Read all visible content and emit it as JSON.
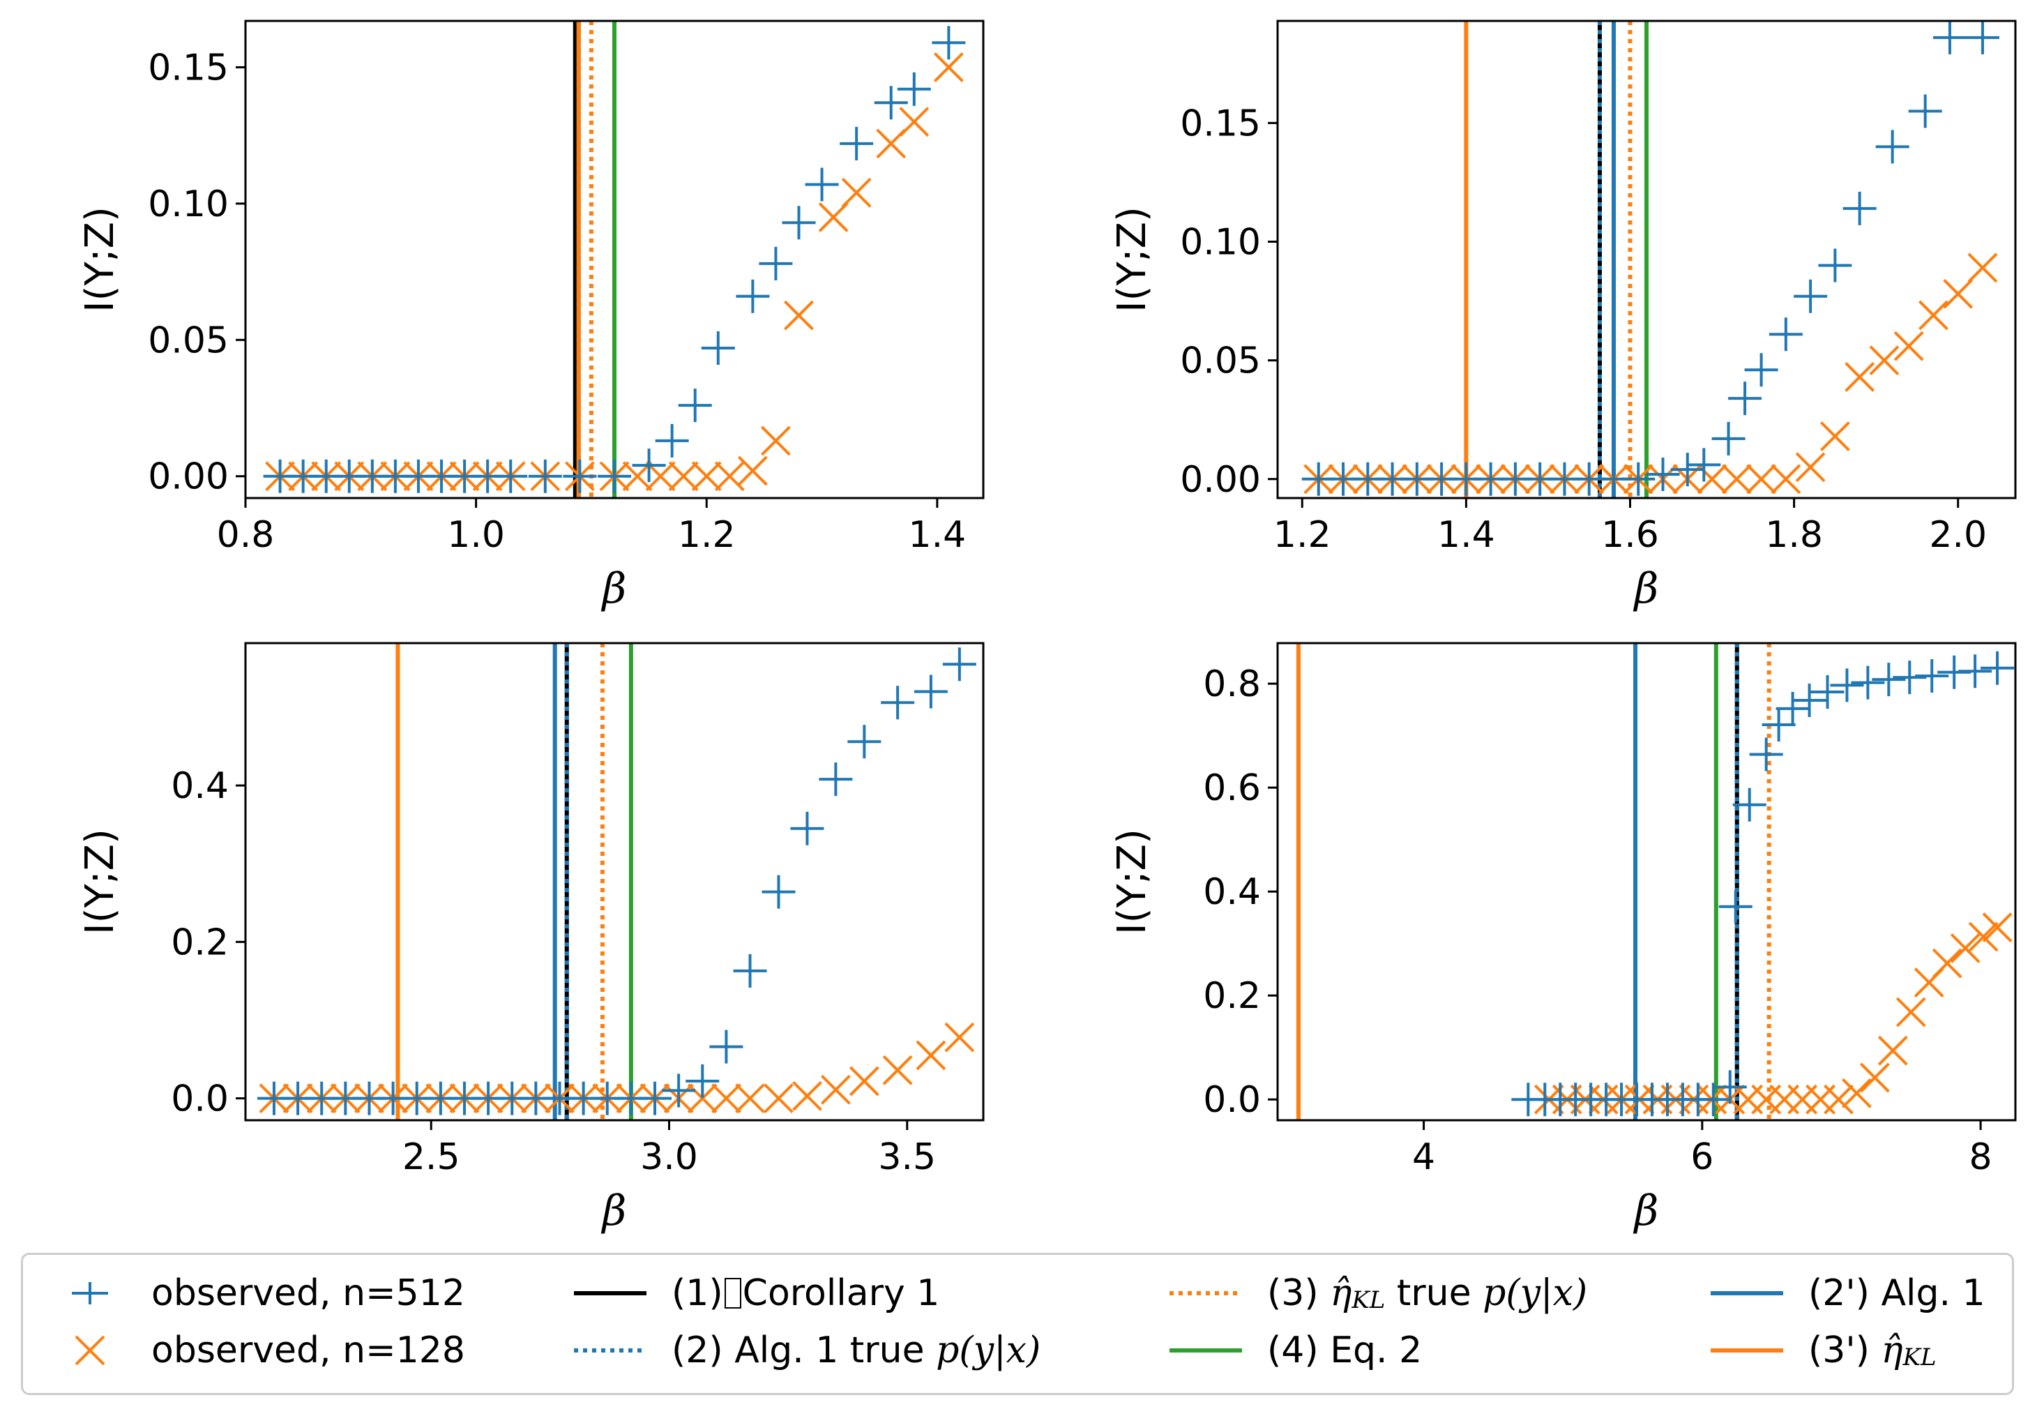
{
  "chart_data": [
    {
      "type": "scatter",
      "id": "top-left",
      "xlabel": "β",
      "ylabel": "I(Y;Z)",
      "xlim": [
        0.8,
        1.44
      ],
      "ylim": [
        -0.008,
        0.167
      ],
      "xticks": [
        0.8,
        1.0,
        1.2,
        1.4
      ],
      "xtick_labels": [
        "0.8",
        "1.0",
        "1.2",
        "1.4"
      ],
      "yticks": [
        0.0,
        0.05,
        0.1,
        0.15
      ],
      "ytick_labels": [
        "0.00",
        "0.05",
        "0.10",
        "0.15"
      ],
      "vlines": [
        {
          "key": "corollary1",
          "x": 1.086
        },
        {
          "key": "eta_kl",
          "x": 1.089
        },
        {
          "key": "alg1_true",
          "x": 1.089
        },
        {
          "key": "alg1",
          "x": 1.089
        },
        {
          "key": "eta_kl_true",
          "x": 1.1
        },
        {
          "key": "eq2",
          "x": 1.12
        }
      ],
      "series": [
        {
          "name": "observed, n=512",
          "x": [
            0.83,
            0.85,
            0.87,
            0.89,
            0.91,
            0.93,
            0.95,
            0.97,
            0.99,
            1.01,
            1.03,
            1.06,
            1.09,
            1.12,
            1.15,
            1.17,
            1.19,
            1.21,
            1.24,
            1.26,
            1.28,
            1.3,
            1.33,
            1.36,
            1.38,
            1.41
          ],
          "y": [
            0,
            0,
            0,
            0,
            0,
            0,
            0,
            0,
            0,
            0,
            0,
            0,
            0,
            0,
            0.004,
            0.013,
            0.026,
            0.047,
            0.066,
            0.078,
            0.093,
            0.107,
            0.122,
            0.137,
            0.142,
            0.159
          ]
        },
        {
          "name": "observed, n=128",
          "x": [
            0.83,
            0.85,
            0.87,
            0.89,
            0.91,
            0.93,
            0.95,
            0.97,
            0.99,
            1.01,
            1.03,
            1.06,
            1.09,
            1.12,
            1.14,
            1.16,
            1.18,
            1.2,
            1.22,
            1.24,
            1.26,
            1.28,
            1.31,
            1.33,
            1.36,
            1.38,
            1.41
          ],
          "y": [
            0,
            0,
            0,
            0,
            0,
            0,
            0,
            0,
            0,
            0,
            0,
            0,
            0,
            0,
            0,
            0,
            0,
            0,
            0,
            0.002,
            0.013,
            0.059,
            0.095,
            0.104,
            0.122,
            0.13,
            0.15
          ]
        }
      ]
    },
    {
      "type": "scatter",
      "id": "top-right",
      "xlabel": "β",
      "ylabel": "I(Y;Z)",
      "xlim": [
        1.17,
        2.07
      ],
      "ylim": [
        -0.008,
        0.193
      ],
      "xticks": [
        1.2,
        1.4,
        1.6,
        1.8,
        2.0
      ],
      "xtick_labels": [
        "1.2",
        "1.4",
        "1.6",
        "1.8",
        "2.0"
      ],
      "yticks": [
        0.0,
        0.05,
        0.1,
        0.15
      ],
      "ytick_labels": [
        "0.00",
        "0.05",
        "0.10",
        "0.15"
      ],
      "vlines": [
        {
          "key": "eta_kl",
          "x": 1.4
        },
        {
          "key": "corollary1",
          "x": 1.563
        },
        {
          "key": "alg1_true",
          "x": 1.563
        },
        {
          "key": "alg1",
          "x": 1.58
        },
        {
          "key": "eta_kl_true",
          "x": 1.6
        },
        {
          "key": "eq2",
          "x": 1.62
        }
      ],
      "series": [
        {
          "name": "observed, n=512",
          "x": [
            1.22,
            1.25,
            1.28,
            1.31,
            1.34,
            1.37,
            1.4,
            1.43,
            1.46,
            1.49,
            1.52,
            1.55,
            1.58,
            1.61,
            1.64,
            1.67,
            1.69,
            1.72,
            1.74,
            1.76,
            1.79,
            1.82,
            1.85,
            1.88,
            1.92,
            1.96,
            1.99,
            2.03
          ],
          "y": [
            0,
            0,
            0,
            0,
            0,
            0,
            0,
            0,
            0,
            0,
            0,
            0,
            0,
            0,
            0.002,
            0.004,
            0.006,
            0.017,
            0.034,
            0.046,
            0.061,
            0.077,
            0.09,
            0.114,
            0.14,
            0.155,
            0.186,
            0.186
          ]
        },
        {
          "name": "observed, n=128",
          "x": [
            1.22,
            1.25,
            1.28,
            1.31,
            1.34,
            1.37,
            1.4,
            1.43,
            1.46,
            1.49,
            1.52,
            1.55,
            1.58,
            1.61,
            1.64,
            1.67,
            1.7,
            1.73,
            1.76,
            1.79,
            1.82,
            1.85,
            1.88,
            1.91,
            1.94,
            1.97,
            2.0,
            2.03
          ],
          "y": [
            0,
            0,
            0,
            0,
            0,
            0,
            0,
            0,
            0,
            0,
            0,
            0,
            0,
            0,
            0,
            0,
            0,
            0,
            0,
            0,
            0.005,
            0.018,
            0.043,
            0.05,
            0.056,
            0.069,
            0.078,
            0.089
          ]
        }
      ]
    },
    {
      "type": "scatter",
      "id": "bottom-left",
      "xlabel": "β",
      "ylabel": "I(Y;Z)",
      "xlim": [
        2.11,
        3.66
      ],
      "ylim": [
        -0.028,
        0.582
      ],
      "xticks": [
        2.5,
        3.0,
        3.5
      ],
      "xtick_labels": [
        "2.5",
        "3.0",
        "3.5"
      ],
      "yticks": [
        0.0,
        0.2,
        0.4
      ],
      "ytick_labels": [
        "0.0",
        "0.2",
        "0.4"
      ],
      "vlines": [
        {
          "key": "eta_kl",
          "x": 2.43
        },
        {
          "key": "alg1",
          "x": 2.76
        },
        {
          "key": "corollary1",
          "x": 2.785
        },
        {
          "key": "alg1_true",
          "x": 2.785
        },
        {
          "key": "eta_kl_true",
          "x": 2.86
        },
        {
          "key": "eq2",
          "x": 2.92
        }
      ],
      "series": [
        {
          "name": "observed, n=512",
          "x": [
            2.17,
            2.22,
            2.27,
            2.32,
            2.37,
            2.42,
            2.47,
            2.52,
            2.57,
            2.62,
            2.67,
            2.72,
            2.77,
            2.82,
            2.87,
            2.92,
            2.97,
            3.02,
            3.07,
            3.12,
            3.17,
            3.23,
            3.29,
            3.35,
            3.41,
            3.48,
            3.55,
            3.61
          ],
          "y": [
            0,
            0,
            0,
            0,
            0,
            0,
            0,
            0,
            0,
            0,
            0,
            0,
            0,
            0,
            0,
            0,
            0,
            0.01,
            0.022,
            0.066,
            0.163,
            0.264,
            0.345,
            0.408,
            0.456,
            0.506,
            0.52,
            0.555
          ]
        },
        {
          "name": "observed, n=128",
          "x": [
            2.17,
            2.22,
            2.27,
            2.32,
            2.37,
            2.42,
            2.47,
            2.52,
            2.57,
            2.62,
            2.67,
            2.72,
            2.77,
            2.82,
            2.87,
            2.92,
            2.97,
            3.02,
            3.07,
            3.12,
            3.17,
            3.23,
            3.29,
            3.35,
            3.41,
            3.48,
            3.55,
            3.61
          ],
          "y": [
            0,
            0,
            0,
            0,
            0,
            0,
            0,
            0,
            0,
            0,
            0,
            0,
            0,
            0,
            0,
            0,
            0,
            0,
            0,
            0,
            0,
            0,
            0.003,
            0.011,
            0.022,
            0.036,
            0.055,
            0.078
          ]
        }
      ]
    },
    {
      "type": "scatter",
      "id": "bottom-right",
      "xlabel": "β",
      "ylabel": "I(Y;Z)",
      "xlim": [
        2.95,
        8.25
      ],
      "ylim": [
        -0.04,
        0.878
      ],
      "xticks": [
        4,
        6,
        8
      ],
      "xtick_labels": [
        "4",
        "6",
        "8"
      ],
      "yticks": [
        0.0,
        0.2,
        0.4,
        0.6,
        0.8
      ],
      "ytick_labels": [
        "0.0",
        "0.2",
        "0.4",
        "0.6",
        "0.8"
      ],
      "vlines": [
        {
          "key": "eta_kl",
          "x": 3.1
        },
        {
          "key": "alg1",
          "x": 5.52
        },
        {
          "key": "eq2",
          "x": 6.1
        },
        {
          "key": "corollary1",
          "x": 6.25
        },
        {
          "key": "alg1_true",
          "x": 6.25
        },
        {
          "key": "eta_kl_true",
          "x": 6.48
        }
      ],
      "series": [
        {
          "name": "observed, n=512",
          "x": [
            4.75,
            4.87,
            4.98,
            5.09,
            5.2,
            5.31,
            5.42,
            5.53,
            5.64,
            5.75,
            5.86,
            5.97,
            6.08,
            6.2,
            6.24,
            6.34,
            6.46,
            6.55,
            6.65,
            6.77,
            6.9,
            7.04,
            7.19,
            7.34,
            7.49,
            7.65,
            7.81,
            7.96,
            8.12
          ],
          "y": [
            0,
            0,
            0,
            0,
            0,
            0,
            0,
            0,
            0,
            0,
            0,
            0,
            0,
            0.024,
            0.371,
            0.567,
            0.664,
            0.721,
            0.752,
            0.768,
            0.784,
            0.797,
            0.802,
            0.808,
            0.812,
            0.815,
            0.822,
            0.824,
            0.83
          ]
        },
        {
          "name": "observed, n=128",
          "x": [
            4.9,
            5.03,
            5.16,
            5.29,
            5.42,
            5.55,
            5.68,
            5.81,
            5.94,
            6.07,
            6.2,
            6.33,
            6.46,
            6.59,
            6.72,
            6.85,
            6.98,
            7.11,
            7.24,
            7.37,
            7.5,
            7.63,
            7.76,
            7.89,
            8.02,
            8.12
          ],
          "y": [
            0,
            0,
            0,
            0,
            0,
            0,
            0,
            0,
            0,
            0,
            0,
            0,
            0,
            0,
            0,
            0,
            0,
            0.012,
            0.042,
            0.094,
            0.168,
            0.225,
            0.262,
            0.291,
            0.313,
            0.331
          ]
        }
      ]
    }
  ],
  "colors": {
    "n512": "#1f77b4",
    "n128": "#ff7f0e",
    "corollary1": "#000000",
    "alg1_true": "#1f77b4",
    "eta_kl_true": "#ff7f0e",
    "eq2": "#2ca02c",
    "alg1": "#1f77b4",
    "eta_kl": "#ff7f0e"
  },
  "legend": {
    "n512": "observed, n=512",
    "n128": "observed, n=128",
    "corollary1_prefix": "(1)",
    "corollary1_box": "􏰀",
    "corollary1_suffix": "Corollary 1",
    "alg1_true_prefix": "(2) Alg. 1 true ",
    "alg1_true_math": "p(y|x)",
    "eta_kl_true_prefix": "(3) ",
    "eta_kl_true_symbol": "η̂",
    "eta_kl_true_sub": "KL",
    "eta_kl_true_mid": " true ",
    "eta_kl_true_math": "p(y|x)",
    "eq2": "(4) Eq. 2",
    "alg1": "(2') Alg. 1",
    "eta_kl_prefix": "(3') ",
    "eta_kl_symbol": "η̂",
    "eta_kl_sub": "KL"
  }
}
